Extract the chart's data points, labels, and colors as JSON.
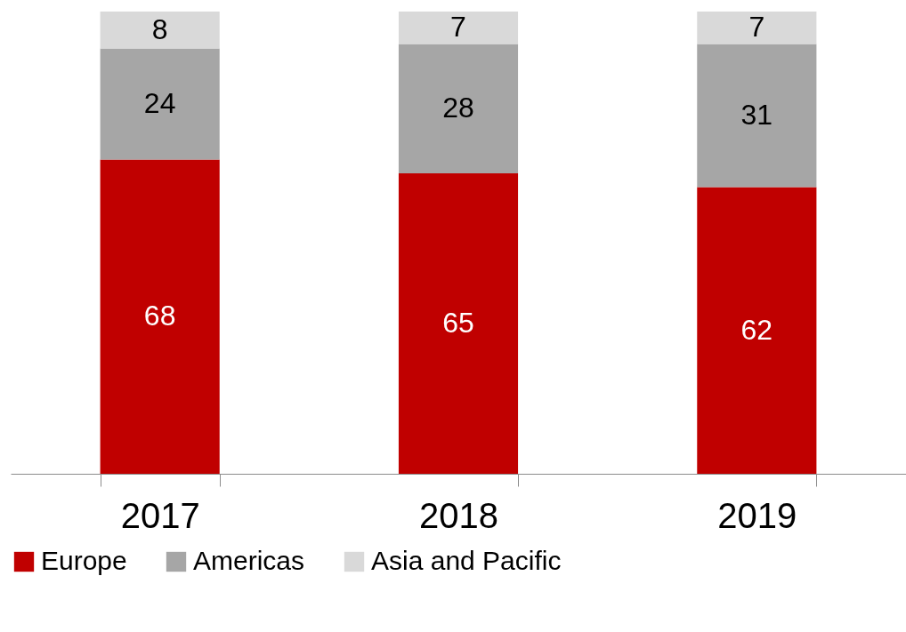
{
  "chart_data": {
    "type": "bar",
    "stacked": true,
    "data_labels": true,
    "legend": "bottom",
    "grid": false,
    "categories": [
      "2017",
      "2018",
      "2019"
    ],
    "series": [
      {
        "name": "Europe",
        "color": "#c00000",
        "values": [
          68,
          65,
          62
        ]
      },
      {
        "name": "Americas",
        "color": "#a6a6a6",
        "values": [
          24,
          28,
          31
        ]
      },
      {
        "name": "Asia and Pacific",
        "color": "#d9d9d9",
        "values": [
          8,
          7,
          7
        ]
      }
    ]
  }
}
